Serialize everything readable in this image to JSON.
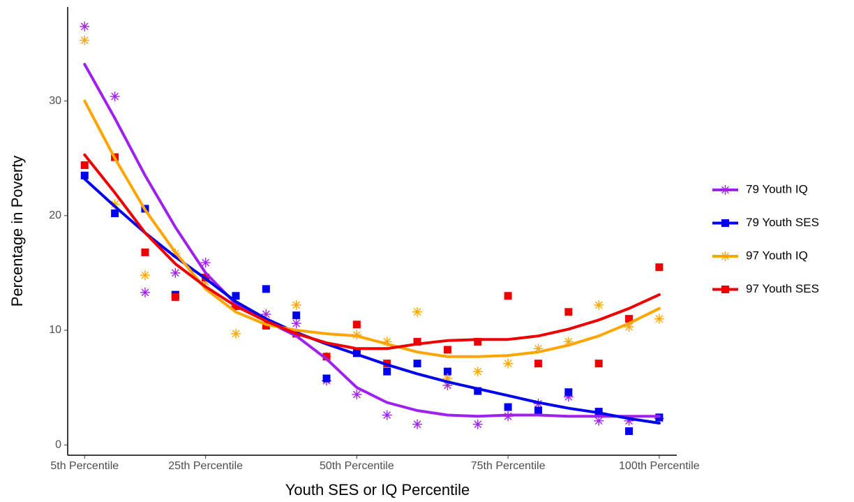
{
  "chart_data": {
    "type": "scatter-smooth",
    "x_label": "Youth SES or IQ Percentile",
    "y_label": "Percentage in Poverty",
    "x": [
      5,
      10,
      15,
      20,
      25,
      30,
      35,
      40,
      45,
      50,
      55,
      60,
      65,
      70,
      75,
      80,
      85,
      90,
      95,
      100
    ],
    "xlim": [
      2.2,
      102.9
    ],
    "xticks": [
      {
        "value": 5,
        "label": "5th Percentile"
      },
      {
        "value": 25,
        "label": "25th Percentile"
      },
      {
        "value": 50,
        "label": "50th Percentile"
      },
      {
        "value": 75,
        "label": "75th Percentile"
      },
      {
        "value": 100,
        "label": "100th Percentile"
      }
    ],
    "ylim": [
      -0.9,
      38.2
    ],
    "yticks": [
      0,
      10,
      20,
      30
    ],
    "grid": false,
    "legend": "right",
    "series": [
      {
        "name": "79 Youth IQ",
        "color": "#a020f0",
        "marker": "asterisk",
        "values": [
          36.5,
          30.4,
          13.3,
          15.0,
          15.9,
          12.1,
          11.4,
          10.6,
          5.6,
          4.4,
          2.6,
          1.8,
          5.2,
          1.8,
          2.5,
          3.6,
          4.2,
          2.1,
          2.1,
          2.3
        ],
        "smooth": [
          33.2,
          28.5,
          23.5,
          19.0,
          15.0,
          12.3,
          10.8,
          9.5,
          7.5,
          5.0,
          3.7,
          3.0,
          2.6,
          2.5,
          2.6,
          2.6,
          2.5,
          2.5,
          2.5,
          2.5
        ]
      },
      {
        "name": "79 Youth SES",
        "color": "#0000ee",
        "marker": "square",
        "values": [
          23.5,
          20.2,
          20.6,
          13.1,
          14.6,
          13.0,
          13.6,
          11.3,
          5.8,
          8.0,
          6.4,
          7.1,
          6.4,
          4.7,
          3.3,
          3.0,
          4.6,
          2.9,
          1.2,
          2.4
        ],
        "smooth": [
          23.2,
          20.8,
          18.5,
          16.4,
          14.5,
          12.5,
          11.0,
          9.8,
          8.8,
          7.9,
          7.0,
          6.2,
          5.5,
          4.9,
          4.3,
          3.7,
          3.2,
          2.8,
          2.3,
          1.9
        ]
      },
      {
        "name": "97 Youth IQ",
        "color": "#ffa500",
        "marker": "asterisk",
        "values": [
          35.3,
          21.0,
          14.8,
          16.7,
          14.2,
          9.7,
          10.6,
          12.2,
          7.7,
          9.6,
          9.0,
          11.6,
          5.8,
          6.4,
          7.1,
          8.4,
          9.0,
          12.2,
          10.3,
          11.0
        ],
        "smooth": [
          30.0,
          25.0,
          20.5,
          16.8,
          13.6,
          11.6,
          10.5,
          10.0,
          9.7,
          9.5,
          8.8,
          8.1,
          7.7,
          7.7,
          7.8,
          8.1,
          8.7,
          9.5,
          10.6,
          11.9
        ]
      },
      {
        "name": "97 Youth SES",
        "color": "#ee0000",
        "marker": "square",
        "values": [
          24.4,
          25.1,
          16.8,
          12.9,
          14.6,
          12.1,
          10.4,
          9.7,
          7.7,
          10.5,
          7.1,
          9.0,
          8.3,
          9.0,
          13.0,
          7.1,
          11.6,
          7.1,
          11.0,
          15.5
        ],
        "smooth": [
          25.3,
          22.0,
          18.5,
          15.8,
          13.8,
          12.1,
          10.8,
          9.7,
          8.9,
          8.4,
          8.4,
          8.8,
          9.1,
          9.2,
          9.2,
          9.5,
          10.1,
          10.9,
          11.9,
          13.1
        ]
      }
    ]
  }
}
